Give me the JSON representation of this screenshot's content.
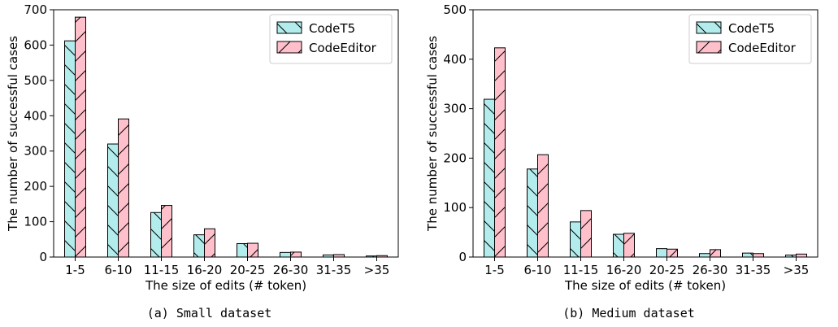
{
  "colors": {
    "codet5": "#b3ecec",
    "codeeditor": "#ffc0cb",
    "edge": "#000000"
  },
  "chart_data": [
    {
      "type": "bar",
      "caption": "(a) Small dataset",
      "xlabel": "The size of edits (# token)",
      "ylabel": "The number of successful cases",
      "ylim": [
        0,
        700
      ],
      "yticks": [
        0,
        100,
        200,
        300,
        400,
        500,
        600,
        700
      ],
      "categories": [
        "1-5",
        "6-10",
        "11-15",
        "16-20",
        "20-25",
        "26-30",
        "31-35",
        ">35"
      ],
      "legend_position": "top-right",
      "series": [
        {
          "name": "CodeT5",
          "values": [
            612,
            320,
            126,
            63,
            38,
            13,
            6,
            3
          ]
        },
        {
          "name": "CodeEditor",
          "values": [
            679,
            391,
            146,
            80,
            39,
            14,
            7,
            4
          ]
        }
      ]
    },
    {
      "type": "bar",
      "caption": "(b) Medium dataset",
      "xlabel": "The size of edits (# token)",
      "ylabel": "The number of successful cases",
      "ylim": [
        0,
        500
      ],
      "yticks": [
        0,
        100,
        200,
        300,
        400,
        500
      ],
      "categories": [
        "1-5",
        "6-10",
        "11-15",
        "16-20",
        "20-25",
        "26-30",
        "31-35",
        ">35"
      ],
      "legend_position": "top-right",
      "series": [
        {
          "name": "CodeT5",
          "values": [
            319,
            178,
            71,
            46,
            17,
            7,
            8,
            4
          ]
        },
        {
          "name": "CodeEditor",
          "values": [
            423,
            207,
            94,
            48,
            16,
            15,
            7,
            6
          ]
        }
      ]
    }
  ]
}
